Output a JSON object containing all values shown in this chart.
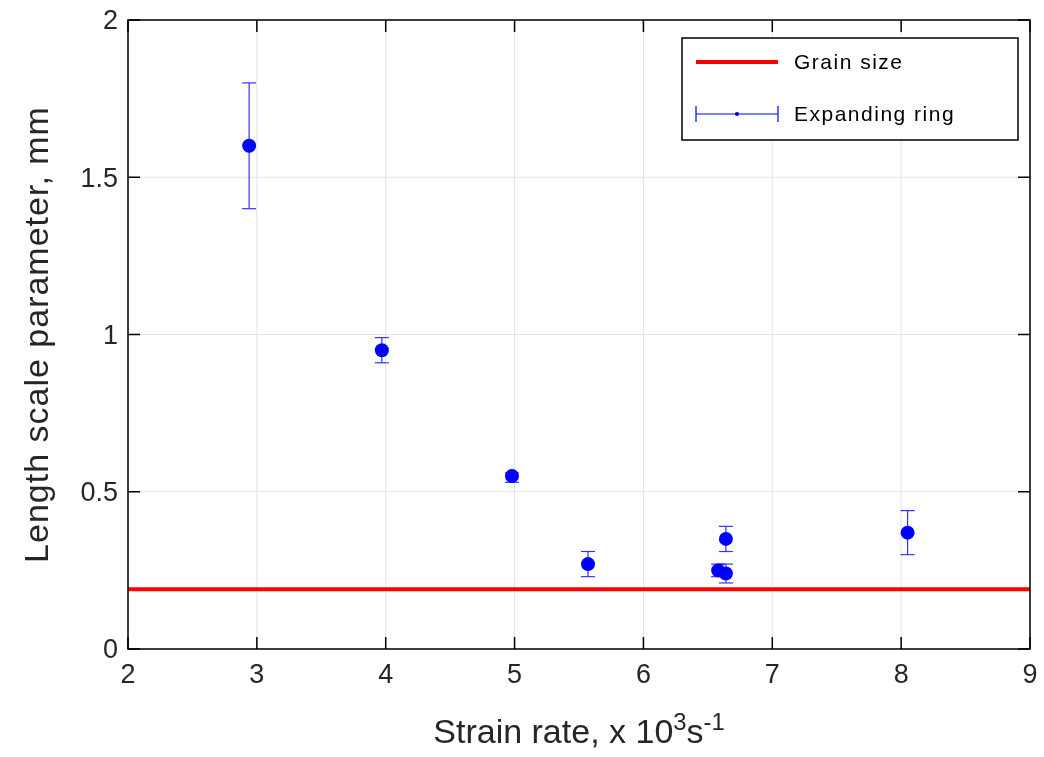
{
  "chart_data": {
    "type": "scatter",
    "xlabel": "Strain rate, x 10$^{3}$s$^{-1}$",
    "ylabel": "Length scale parameter, mm",
    "xlim": [
      2,
      9
    ],
    "xticks": [
      2,
      3,
      4,
      5,
      6,
      7,
      8,
      9
    ],
    "ylim": [
      0,
      2
    ],
    "yticks": [
      0,
      0.5,
      1,
      1.5,
      2
    ],
    "grid": true,
    "legend": "top right",
    "marker": "circle",
    "series": [
      {
        "name": "Grain size",
        "type": "line",
        "color": "#ff0000",
        "x": [
          2,
          9
        ],
        "values": [
          0.19,
          0.19
        ],
        "marker": "none"
      },
      {
        "name": "Expanding ring",
        "color": "#0000ff",
        "x": [
          2.94,
          3.97,
          4.98,
          5.57,
          6.58,
          6.64,
          6.64,
          8.05
        ],
        "values": [
          1.6,
          0.95,
          0.55,
          0.27,
          0.25,
          0.35,
          0.24,
          0.37
        ],
        "errors": [
          [
            1.4,
            1.8
          ],
          [
            0.91,
            0.99
          ],
          [
            0.53,
            0.56
          ],
          [
            0.23,
            0.31
          ],
          [
            0.23,
            0.27
          ],
          [
            0.31,
            0.39
          ],
          [
            0.21,
            0.27
          ],
          [
            0.3,
            0.44
          ]
        ]
      }
    ]
  }
}
